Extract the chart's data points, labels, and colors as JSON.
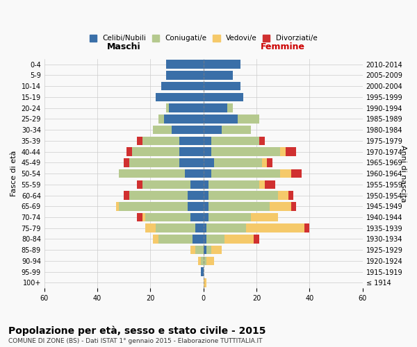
{
  "age_groups": [
    "100+",
    "95-99",
    "90-94",
    "85-89",
    "80-84",
    "75-79",
    "70-74",
    "65-69",
    "60-64",
    "55-59",
    "50-54",
    "45-49",
    "40-44",
    "35-39",
    "30-34",
    "25-29",
    "20-24",
    "15-19",
    "10-14",
    "5-9",
    "0-4"
  ],
  "birth_years": [
    "≤ 1914",
    "1915-1919",
    "1920-1924",
    "1925-1929",
    "1930-1934",
    "1935-1939",
    "1940-1944",
    "1945-1949",
    "1950-1954",
    "1955-1959",
    "1960-1964",
    "1965-1969",
    "1970-1974",
    "1975-1979",
    "1980-1984",
    "1985-1989",
    "1990-1994",
    "1995-1999",
    "2000-2004",
    "2005-2009",
    "2010-2014"
  ],
  "males": {
    "celibe": [
      0,
      1,
      0,
      0,
      4,
      3,
      5,
      6,
      6,
      5,
      7,
      9,
      9,
      9,
      12,
      15,
      13,
      18,
      16,
      14,
      14
    ],
    "coniugato": [
      0,
      0,
      1,
      3,
      13,
      15,
      17,
      26,
      22,
      18,
      25,
      19,
      18,
      14,
      7,
      2,
      1,
      0,
      0,
      0,
      0
    ],
    "vedovo": [
      0,
      0,
      1,
      2,
      2,
      4,
      1,
      1,
      0,
      0,
      0,
      0,
      0,
      0,
      0,
      0,
      0,
      0,
      0,
      0,
      0
    ],
    "divorziato": [
      0,
      0,
      0,
      0,
      0,
      0,
      2,
      0,
      2,
      2,
      0,
      2,
      2,
      2,
      0,
      0,
      0,
      0,
      0,
      0,
      0
    ]
  },
  "females": {
    "nubile": [
      0,
      0,
      0,
      1,
      1,
      1,
      2,
      2,
      2,
      2,
      3,
      4,
      3,
      3,
      7,
      13,
      9,
      15,
      14,
      11,
      14
    ],
    "coniugata": [
      0,
      0,
      1,
      2,
      7,
      15,
      16,
      23,
      26,
      19,
      26,
      18,
      26,
      18,
      11,
      8,
      2,
      0,
      0,
      0,
      0
    ],
    "vedova": [
      1,
      0,
      3,
      4,
      11,
      22,
      10,
      8,
      4,
      2,
      4,
      2,
      2,
      0,
      0,
      0,
      0,
      0,
      0,
      0,
      0
    ],
    "divorziata": [
      0,
      0,
      0,
      0,
      2,
      2,
      0,
      2,
      2,
      4,
      4,
      2,
      4,
      2,
      0,
      0,
      0,
      0,
      0,
      0,
      0
    ]
  },
  "colors": {
    "celibe": "#3a6fa8",
    "coniugato": "#b5c98e",
    "vedovo": "#f5c96a",
    "divorziato": "#d03030"
  },
  "xlim": 60,
  "title": "Popolazione per età, sesso e stato civile - 2015",
  "subtitle": "COMUNE DI ZONE (BS) - Dati ISTAT 1° gennaio 2015 - Elaborazione TUTTITALIA.IT",
  "xlabel_left": "Maschi",
  "xlabel_right": "Femmine",
  "ylabel": "Fasce di età",
  "ylabel_right": "Anni di nascita",
  "legend_labels": [
    "Celibi/Nubili",
    "Coniugati/e",
    "Vedovi/e",
    "Divorziati/e"
  ],
  "bg_color": "#f9f9f9",
  "grid_color": "#cccccc"
}
